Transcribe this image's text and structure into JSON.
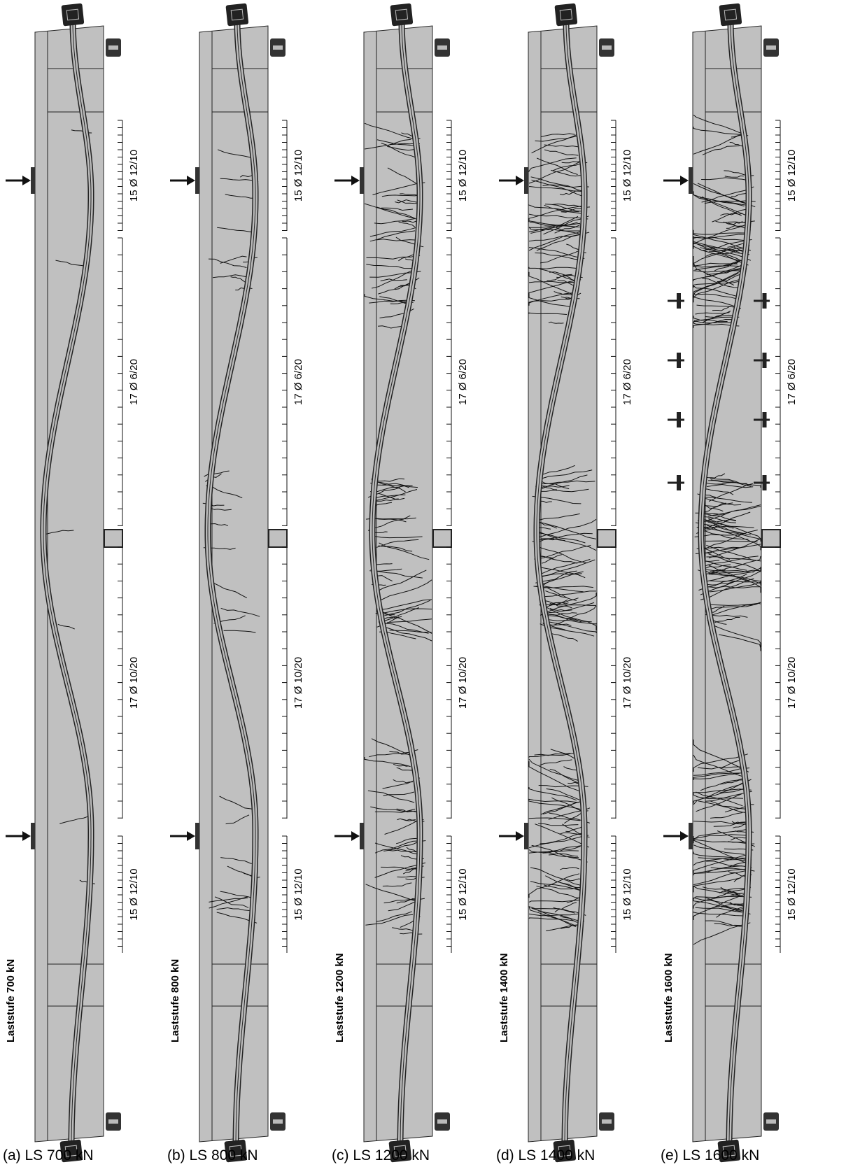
{
  "panels": [
    {
      "caption": "(a)  LS 700 kN",
      "load_step": "Laststufe 700 kN",
      "reinforcement": [
        "15 Ø 12/10",
        "17 Ø 6/20",
        "17 Ø 10/20",
        "15 Ø 12/10"
      ]
    },
    {
      "caption": "(b)  LS 800 kN",
      "load_step": "Laststufe 800 kN",
      "reinforcement": [
        "15 Ø 12/10",
        "17 Ø 6/20",
        "17 Ø 10/20",
        "15 Ø 12/10"
      ]
    },
    {
      "caption": "(c)  LS 1200 kN",
      "load_step": "Laststufe 1200 kN",
      "reinforcement": [
        "15 Ø 12/10",
        "17 Ø 6/20",
        "17 Ø 10/20",
        "15 Ø 12/10"
      ]
    },
    {
      "caption": "(d)  LS 1400 kN",
      "load_step": "Laststufe 1400 kN",
      "reinforcement": [
        "15 Ø 12/10",
        "17 Ø 6/20",
        "17 Ø 10/20",
        "15 Ø 12/10"
      ]
    },
    {
      "caption": "(e)  LS 1600 kN",
      "load_step": "Laststufe 1600 kN",
      "reinforcement": [
        "15 Ø 12/10",
        "17 Ø 6/20",
        "17 Ø 10/20",
        "15 Ø 12/10"
      ]
    }
  ]
}
